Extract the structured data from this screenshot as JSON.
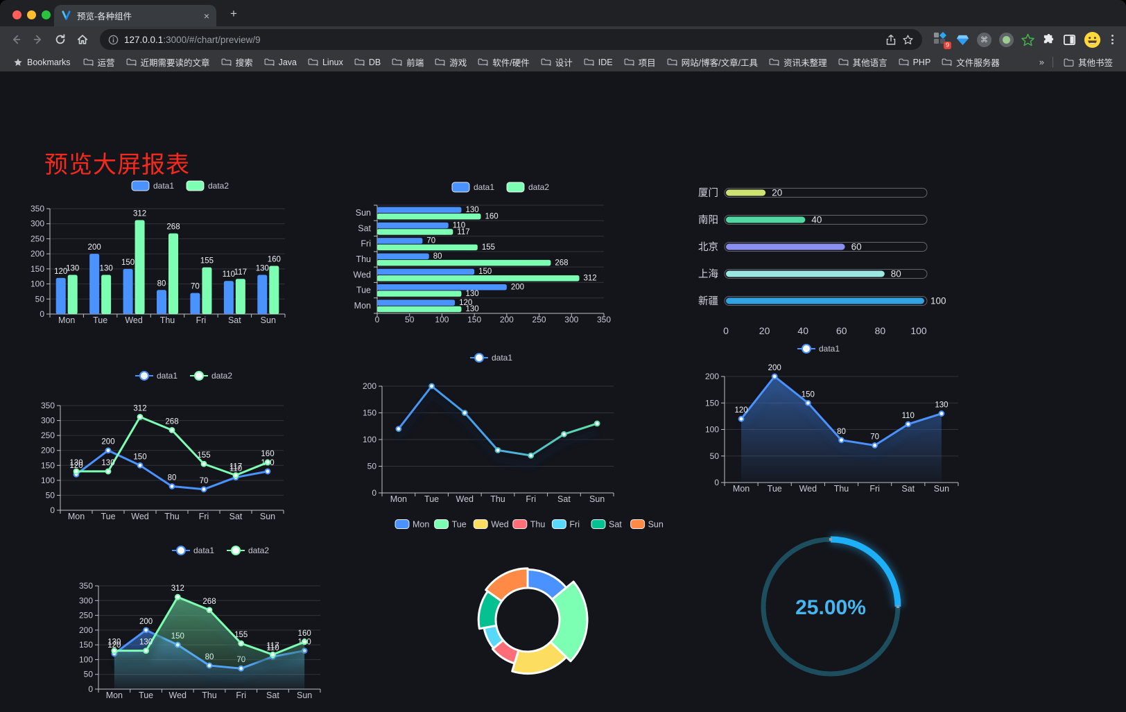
{
  "browser": {
    "tab": {
      "title": "预览-各种组件",
      "close": "×",
      "new_tab": "+"
    },
    "url": {
      "host": "127.0.0.1",
      "rest": ":3000/#/chart/preview/9"
    },
    "extension_badge": "9",
    "bookmarks": {
      "label": "Bookmarks",
      "items": [
        "运营",
        "近期需要读的文章",
        "搜索",
        "Java",
        "Linux",
        "DB",
        "前端",
        "游戏",
        "软件/硬件",
        "设计",
        "IDE",
        "项目",
        "网站/博客/文章/工具",
        "资讯未整理",
        "其他语言",
        "PHP",
        "文件服务器"
      ],
      "overflow": "»",
      "other": "其他书签"
    }
  },
  "page": {
    "title": "预览大屏报表",
    "title_color": "#f5291c",
    "background": "#14151b"
  },
  "chart_data": [
    {
      "type": "bar",
      "orientation": "vertical",
      "categories": [
        "Mon",
        "Tue",
        "Wed",
        "Thu",
        "Fri",
        "Sat",
        "Sun"
      ],
      "series": [
        {
          "name": "data1",
          "color": "#4992ff",
          "values": [
            120,
            200,
            150,
            80,
            70,
            110,
            130
          ]
        },
        {
          "name": "data2",
          "color": "#7cffb2",
          "values": [
            130,
            130,
            312,
            268,
            155,
            117,
            160
          ]
        }
      ],
      "ylim": [
        0,
        350
      ],
      "yticks": [
        0,
        50,
        100,
        150,
        200,
        250,
        300,
        350
      ],
      "grid": true,
      "legend_position": "top"
    },
    {
      "type": "bar",
      "orientation": "horizontal",
      "categories": [
        "Mon",
        "Tue",
        "Wed",
        "Thu",
        "Fri",
        "Sat",
        "Sun"
      ],
      "category_order": "reversed",
      "series": [
        {
          "name": "data1",
          "color": "#4992ff",
          "values": [
            120,
            200,
            150,
            80,
            70,
            110,
            130
          ]
        },
        {
          "name": "data2",
          "color": "#7cffb2",
          "values": [
            130,
            130,
            312,
            268,
            155,
            117,
            160
          ]
        }
      ],
      "xlim": [
        0,
        350
      ],
      "xticks": [
        0,
        50,
        100,
        150,
        200,
        250,
        300,
        350
      ],
      "grid": true,
      "legend_position": "top"
    },
    {
      "type": "bar",
      "subtype": "progress",
      "items": [
        {
          "label": "厦门",
          "value": 20,
          "color": "#cde273"
        },
        {
          "label": "南阳",
          "value": 40,
          "color": "#51d7a2"
        },
        {
          "label": "北京",
          "value": 60,
          "color": "#8a8ff0"
        },
        {
          "label": "上海",
          "value": 80,
          "color": "#9be8e3"
        },
        {
          "label": "新疆",
          "value": 100,
          "color": "#33a2e2"
        }
      ],
      "xlim": [
        0,
        100
      ],
      "xticks": [
        0,
        20,
        40,
        60,
        80,
        100
      ]
    },
    {
      "type": "line",
      "categories": [
        "Mon",
        "Tue",
        "Wed",
        "Thu",
        "Fri",
        "Sat",
        "Sun"
      ],
      "series": [
        {
          "name": "data1",
          "color": "#4992ff",
          "values": [
            120,
            200,
            150,
            80,
            70,
            110,
            130
          ]
        },
        {
          "name": "data2",
          "color": "#7cffb2",
          "values": [
            130,
            130,
            312,
            268,
            155,
            117,
            160
          ]
        }
      ],
      "ylim": [
        0,
        350
      ],
      "yticks": [
        0,
        50,
        100,
        150,
        200,
        250,
        300,
        350
      ],
      "labels": true,
      "legend_position": "top"
    },
    {
      "type": "line",
      "style": "gradient-shadow",
      "categories": [
        "Mon",
        "Tue",
        "Wed",
        "Thu",
        "Fri",
        "Sat",
        "Sun"
      ],
      "series": [
        {
          "name": "data1",
          "color_start": "#4593f5",
          "color_end": "#5ce2a6",
          "values": [
            120,
            200,
            150,
            80,
            70,
            110,
            130
          ]
        }
      ],
      "ylim": [
        0,
        200
      ],
      "yticks": [
        0,
        50,
        100,
        150,
        200
      ],
      "labels": false,
      "legend_position": "top"
    },
    {
      "type": "area",
      "categories": [
        "Mon",
        "Tue",
        "Wed",
        "Thu",
        "Fri",
        "Sat",
        "Sun"
      ],
      "series": [
        {
          "name": "data1",
          "color": "#4992ff",
          "values": [
            120,
            200,
            150,
            80,
            70,
            110,
            130
          ]
        }
      ],
      "ylim": [
        0,
        200
      ],
      "yticks": [
        0,
        50,
        100,
        150,
        200
      ],
      "labels": true,
      "legend_position": "top"
    },
    {
      "type": "area",
      "categories": [
        "Mon",
        "Tue",
        "Wed",
        "Thu",
        "Fri",
        "Sat",
        "Sun"
      ],
      "series": [
        {
          "name": "data1",
          "color": "#4992ff",
          "values": [
            120,
            200,
            150,
            80,
            70,
            110,
            130
          ]
        },
        {
          "name": "data2",
          "color": "#7cffb2",
          "values": [
            130,
            130,
            312,
            268,
            155,
            117,
            160
          ]
        }
      ],
      "ylim": [
        0,
        350
      ],
      "yticks": [
        0,
        50,
        100,
        150,
        200,
        250,
        300,
        350
      ],
      "labels": true,
      "legend_position": "top"
    },
    {
      "type": "pie",
      "subtype": "rose-donut",
      "categories": [
        "Mon",
        "Tue",
        "Wed",
        "Thu",
        "Fri",
        "Sat",
        "Sun"
      ],
      "values": [
        120,
        200,
        150,
        80,
        70,
        110,
        130
      ],
      "colors": [
        "#4992ff",
        "#7cffb2",
        "#fddd60",
        "#ff6e76",
        "#58d9f9",
        "#05c091",
        "#ff8a45"
      ],
      "legend_position": "top"
    },
    {
      "type": "gauge",
      "subtype": "ring-progress",
      "value": 25,
      "label": "25.00%",
      "color": "#1db0f8",
      "track_color": "#1d4e5d",
      "text_color": "#45b6f2"
    }
  ]
}
